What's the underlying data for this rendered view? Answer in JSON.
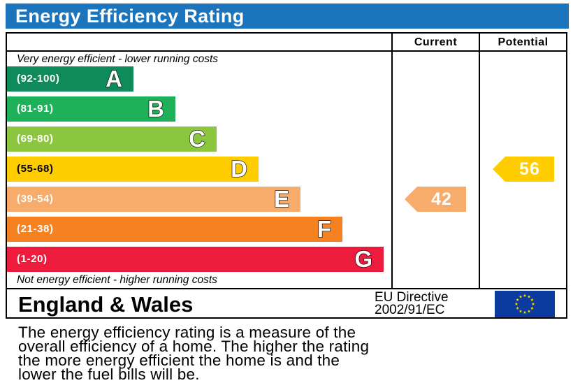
{
  "header": {
    "title": "Energy Efficiency Rating"
  },
  "columns": {
    "current_label": "Current",
    "potential_label": "Potential"
  },
  "captions": {
    "top": "Very energy efficient - lower running costs",
    "bottom": "Not energy efficient - higher running costs"
  },
  "footer": {
    "country": "England & Wales",
    "directive_line1": "EU Directive",
    "directive_line2": "2002/91/EC"
  },
  "description": [
    "The energy efficiency rating is a measure of the",
    "overall efficiency of a home. The higher the rating",
    "the more energy efficient the home is and the",
    "lower the fuel bills will be."
  ],
  "chart_data": {
    "type": "bar",
    "bands": [
      {
        "letter": "A",
        "range": "(92-100)",
        "min": 92,
        "max": 100,
        "color": "#0f8a5a"
      },
      {
        "letter": "B",
        "range": "(81-91)",
        "min": 81,
        "max": 91,
        "color": "#1fb05a"
      },
      {
        "letter": "C",
        "range": "(69-80)",
        "min": 69,
        "max": 80,
        "color": "#8cc63f"
      },
      {
        "letter": "D",
        "range": "(55-68)",
        "min": 55,
        "max": 68,
        "color": "#ffcc00"
      },
      {
        "letter": "E",
        "range": "(39-54)",
        "min": 39,
        "max": 54,
        "color": "#f7ac6c"
      },
      {
        "letter": "F",
        "range": "(21-38)",
        "min": 21,
        "max": 38,
        "color": "#f58220"
      },
      {
        "letter": "G",
        "range": "(1-20)",
        "min": 1,
        "max": 20,
        "color": "#ed1c3c"
      }
    ],
    "current": {
      "value": 42,
      "band": "E",
      "color": "#f7ac6c"
    },
    "potential": {
      "value": 56,
      "band": "D",
      "color": "#ffcc00"
    }
  }
}
